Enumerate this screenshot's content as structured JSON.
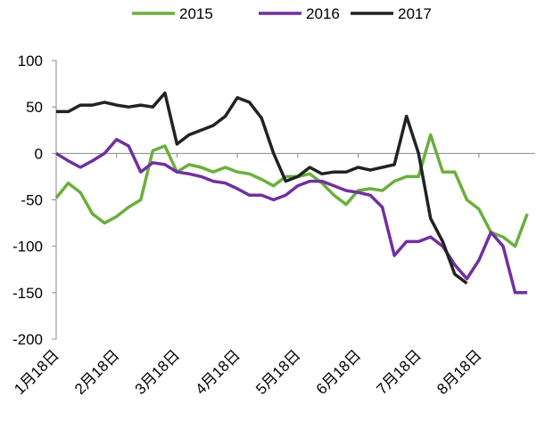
{
  "chart_data": {
    "type": "line",
    "categories": [
      "1月18日",
      null,
      null,
      null,
      null,
      "2月18日",
      null,
      null,
      null,
      null,
      "3月18日",
      null,
      null,
      null,
      null,
      "4月18日",
      null,
      null,
      null,
      null,
      "5月18日",
      null,
      null,
      null,
      null,
      "6月18日",
      null,
      null,
      null,
      null,
      "7月18日",
      null,
      null,
      null,
      null,
      "8月18日",
      null,
      null,
      null,
      null
    ],
    "series": [
      {
        "name": "2015",
        "color": "#6aaf3d",
        "values": [
          -48,
          -32,
          -42,
          -65,
          -75,
          -68,
          -58,
          -50,
          3,
          8,
          -20,
          -12,
          -15,
          -20,
          -15,
          -20,
          -22,
          -28,
          -35,
          -25,
          -25,
          -22,
          -32,
          -45,
          -55,
          -40,
          -38,
          -40,
          -30,
          -25,
          -25,
          20,
          -20,
          -20,
          -50,
          -60,
          -85,
          -90,
          -100,
          -65
        ]
      },
      {
        "name": "2016",
        "color": "#7030a0",
        "values": [
          0,
          -8,
          -15,
          -8,
          0,
          15,
          8,
          -20,
          -10,
          -12,
          -20,
          -22,
          -25,
          -30,
          -32,
          -38,
          -45,
          -45,
          -50,
          -45,
          -35,
          -30,
          -30,
          -35,
          -40,
          -42,
          -45,
          -58,
          -110,
          -95,
          -95,
          -90,
          -100,
          -120,
          -135,
          -115,
          -85,
          -100,
          -150,
          -150
        ]
      },
      {
        "name": "2017",
        "color": "#222222",
        "values": [
          45,
          45,
          52,
          52,
          55,
          52,
          50,
          52,
          50,
          65,
          10,
          20,
          25,
          30,
          40,
          60,
          55,
          38,
          0,
          -30,
          -25,
          -15,
          -22,
          -20,
          -20,
          -15,
          -18,
          -15,
          -12,
          40,
          0,
          -70,
          -95,
          -130,
          -140,
          null,
          null,
          null,
          null,
          null
        ]
      }
    ],
    "ylim": [
      -200,
      100
    ],
    "yticks": [
      -200,
      -150,
      -100,
      -50,
      0,
      50,
      100
    ],
    "legend": "top"
  }
}
